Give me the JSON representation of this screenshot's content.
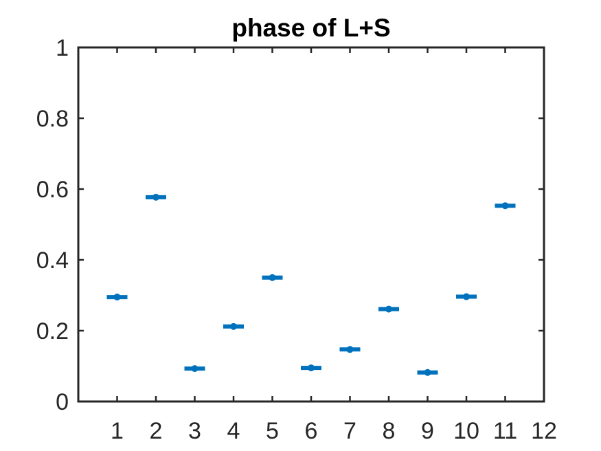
{
  "chart_data": {
    "type": "scatter",
    "title": "phase of L+S",
    "xlabel": "",
    "ylabel": "",
    "xlim": [
      0,
      12
    ],
    "ylim": [
      0,
      1
    ],
    "x_ticks": [
      1,
      2,
      3,
      4,
      5,
      6,
      7,
      8,
      9,
      10,
      11,
      12
    ],
    "x_tick_labels": [
      "1",
      "2",
      "3",
      "4",
      "5",
      "6",
      "7",
      "8",
      "9",
      "10",
      "11",
      "12"
    ],
    "y_ticks": [
      0,
      0.2,
      0.4,
      0.6,
      0.8,
      1
    ],
    "y_tick_labels": [
      "0",
      "0.2",
      "0.4",
      "0.6",
      "0.8",
      "1"
    ],
    "grid": false,
    "series": [
      {
        "x": [
          1,
          2,
          3,
          4,
          5,
          6,
          7,
          8,
          9,
          10,
          11
        ],
        "y": [
          0.295,
          0.577,
          0.093,
          0.212,
          0.35,
          0.095,
          0.147,
          0.261,
          0.082,
          0.296,
          0.553
        ],
        "color": "#0072BD",
        "marker": "point-with-horizontal-bar"
      }
    ]
  }
}
